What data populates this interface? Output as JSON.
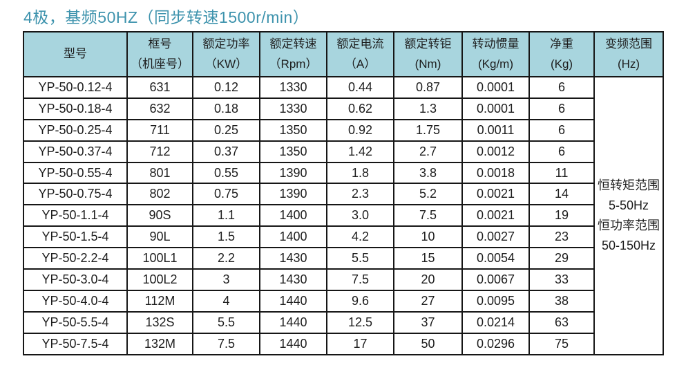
{
  "title": "4极，基频50HZ（同步转速1500r/min）",
  "colors": {
    "title_text": "#3e93ad",
    "header_background": "#a8d5de",
    "table_border": "#161616",
    "cell_background": "#ffffff"
  },
  "table": {
    "headers": [
      {
        "line1": "型号",
        "line2": ""
      },
      {
        "line1": "框号",
        "line2": "（机座号）"
      },
      {
        "line1": "额定功率",
        "line2": "（KW）"
      },
      {
        "line1": "额定转速",
        "line2": "（Rpm）"
      },
      {
        "line1": "额定电流",
        "line2": "（A）"
      },
      {
        "line1": "额定转钜",
        "line2": "(Nm)"
      },
      {
        "line1": "转动惯量",
        "line2": "(Kg/m)"
      },
      {
        "line1": "净重",
        "line2": "(Kg)"
      },
      {
        "line1": "变频范围",
        "line2": "(Hz)"
      }
    ],
    "rows": [
      [
        "YP-50-0.12-4",
        "631",
        "0.12",
        "1330",
        "0.44",
        "0.87",
        "0.0001",
        "6"
      ],
      [
        "YP-50-0.18-4",
        "632",
        "0.18",
        "1330",
        "0.62",
        "1.3",
        "0.0001",
        "6"
      ],
      [
        "YP-50-0.25-4",
        "711",
        "0.25",
        "1350",
        "0.92",
        "1.75",
        "0.0011",
        "6"
      ],
      [
        "YP-50-0.37-4",
        "712",
        "0.37",
        "1350",
        "1.42",
        "2.7",
        "0.0012",
        "6"
      ],
      [
        "YP-50-0.55-4",
        "801",
        "0.55",
        "1390",
        "1.8",
        "3.8",
        "0.0018",
        "11"
      ],
      [
        "YP-50-0.75-4",
        "802",
        "0.75",
        "1390",
        "2.3",
        "5.2",
        "0.0021",
        "14"
      ],
      [
        "YP-50-1.1-4",
        "90S",
        "1.1",
        "1400",
        "3.0",
        "7.5",
        "0.0021",
        "19"
      ],
      [
        "YP-50-1.5-4",
        "90L",
        "1.5",
        "1400",
        "4.2",
        "10",
        "0.0027",
        "23"
      ],
      [
        "YP-50-2.2-4",
        "100L1",
        "2.2",
        "1430",
        "5.5",
        "15",
        "0.0054",
        "29"
      ],
      [
        "YP-50-3.0-4",
        "100L2",
        "3",
        "1430",
        "7.5",
        "20",
        "0.0067",
        "33"
      ],
      [
        "YP-50-4.0-4",
        "112M",
        "4",
        "1440",
        "9.6",
        "27",
        "0.0095",
        "38"
      ],
      [
        "YP-50-5.5-4",
        "132S",
        "5.5",
        "1440",
        "12.5",
        "37",
        "0.0214",
        "63"
      ],
      [
        "YP-50-7.5-4",
        "132M",
        "7.5",
        "1440",
        "17",
        "50",
        "0.0296",
        "75"
      ]
    ],
    "frequency_range_lines": [
      "恒转矩范围",
      "5-50Hz",
      "恒功率范围",
      "50-150Hz"
    ]
  }
}
